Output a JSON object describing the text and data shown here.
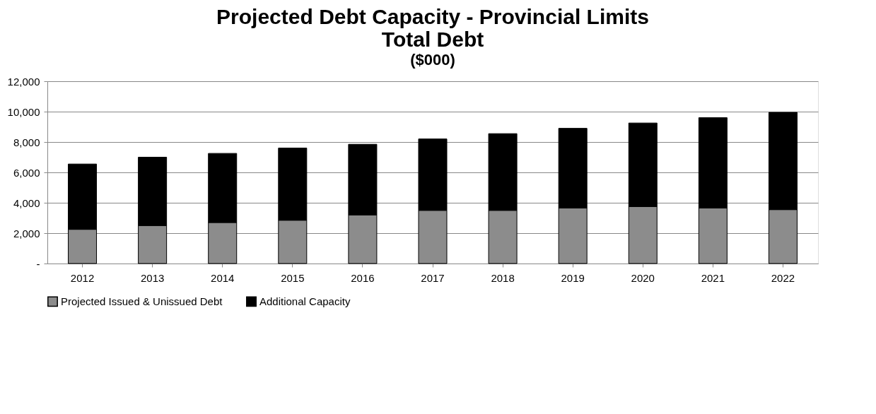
{
  "chart_data": {
    "type": "bar",
    "title": [
      "Projected Debt Capacity - Provincial Limits",
      "Total Debt"
    ],
    "subtitle": "($000)",
    "categories": [
      "2012",
      "2013",
      "2014",
      "2015",
      "2016",
      "2017",
      "2018",
      "2019",
      "2020",
      "2021",
      "2022"
    ],
    "stacked": true,
    "series": [
      {
        "name": "Projected Issued & Unissued Debt",
        "color": "#8c8c8c",
        "values": [
          2250,
          2500,
          2700,
          2850,
          3200,
          3500,
          3500,
          3650,
          3750,
          3650,
          3550
        ]
      },
      {
        "name": "Additional Capacity",
        "color": "#000000",
        "values": [
          4300,
          4500,
          4550,
          4750,
          4650,
          4700,
          5050,
          5250,
          5500,
          5950,
          6400
        ]
      }
    ],
    "ylim": [
      0,
      12000
    ],
    "yticks": [
      {
        "value": 0,
        "label": "-"
      },
      {
        "value": 2000,
        "label": "2,000"
      },
      {
        "value": 4000,
        "label": "4,000"
      },
      {
        "value": 6000,
        "label": "6,000"
      },
      {
        "value": 8000,
        "label": "8,000"
      },
      {
        "value": 10000,
        "label": "10,000"
      },
      {
        "value": 12000,
        "label": "12,000"
      }
    ],
    "grid": "y",
    "legend": "bottom"
  }
}
